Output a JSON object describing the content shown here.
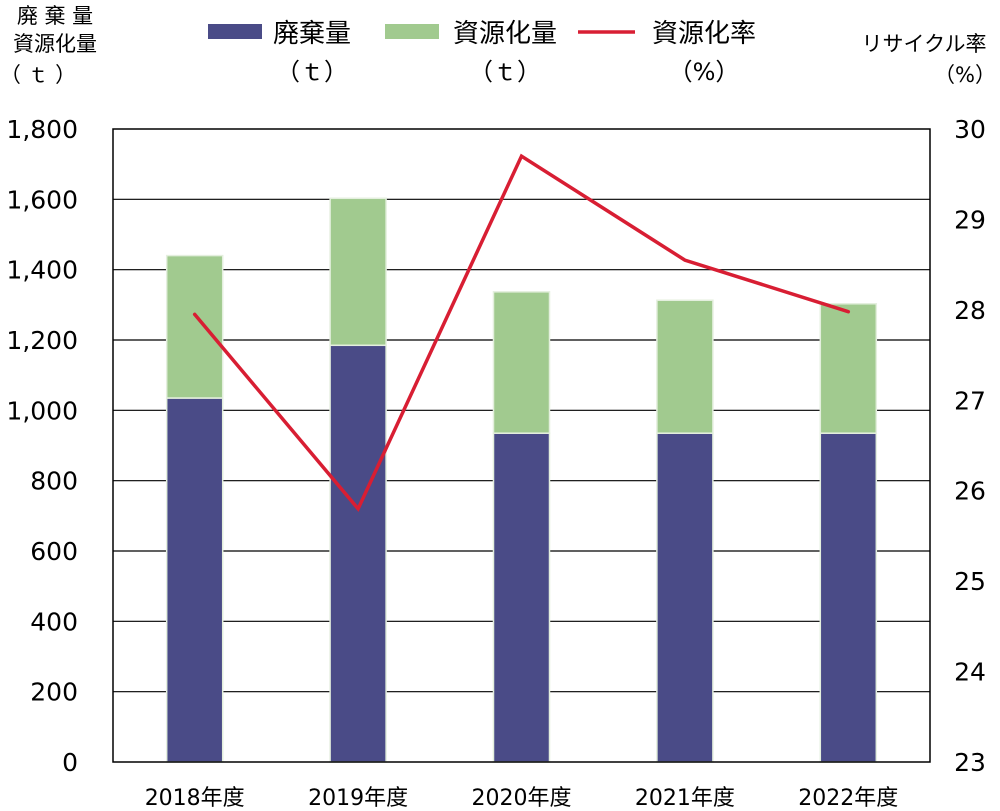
{
  "chart_data": {
    "type": "bar",
    "stacked": true,
    "categories": [
      "2018年度",
      "2019年度",
      "2020年度",
      "2021年度",
      "2022年度"
    ],
    "series": [
      {
        "name": "廃棄量",
        "unit": "（ｔ）",
        "kind": "bar",
        "axis": "left",
        "color": "#4a4b87",
        "values": [
          1035,
          1185,
          935,
          935,
          935
        ]
      },
      {
        "name": "資源化量",
        "unit": "（ｔ）",
        "kind": "bar",
        "axis": "left",
        "color": "#a1ca8f",
        "values": [
          405,
          418,
          402,
          378,
          368
        ]
      },
      {
        "name": "資源化率",
        "unit": "（%）",
        "kind": "line",
        "axis": "right",
        "color": "#d81e33",
        "values": [
          27.95,
          25.8,
          29.7,
          28.55,
          27.98
        ]
      }
    ],
    "y_left": {
      "label_lines": [
        "廃 棄 量",
        "資源化量",
        "（ ｔ ）"
      ],
      "ylim": [
        0,
        1800
      ],
      "ticks": [
        "0",
        "200",
        "400",
        "600",
        "800",
        "1,000",
        "1,200",
        "1,400",
        "1,600",
        "1,800"
      ]
    },
    "y_right": {
      "label_lines": [
        "リサイクル率",
        "（%）"
      ],
      "ylim": [
        23,
        30
      ],
      "ticks": [
        "23",
        "24",
        "25",
        "26",
        "27",
        "28",
        "29",
        "30"
      ]
    },
    "grid": true,
    "legend_position": "top"
  }
}
